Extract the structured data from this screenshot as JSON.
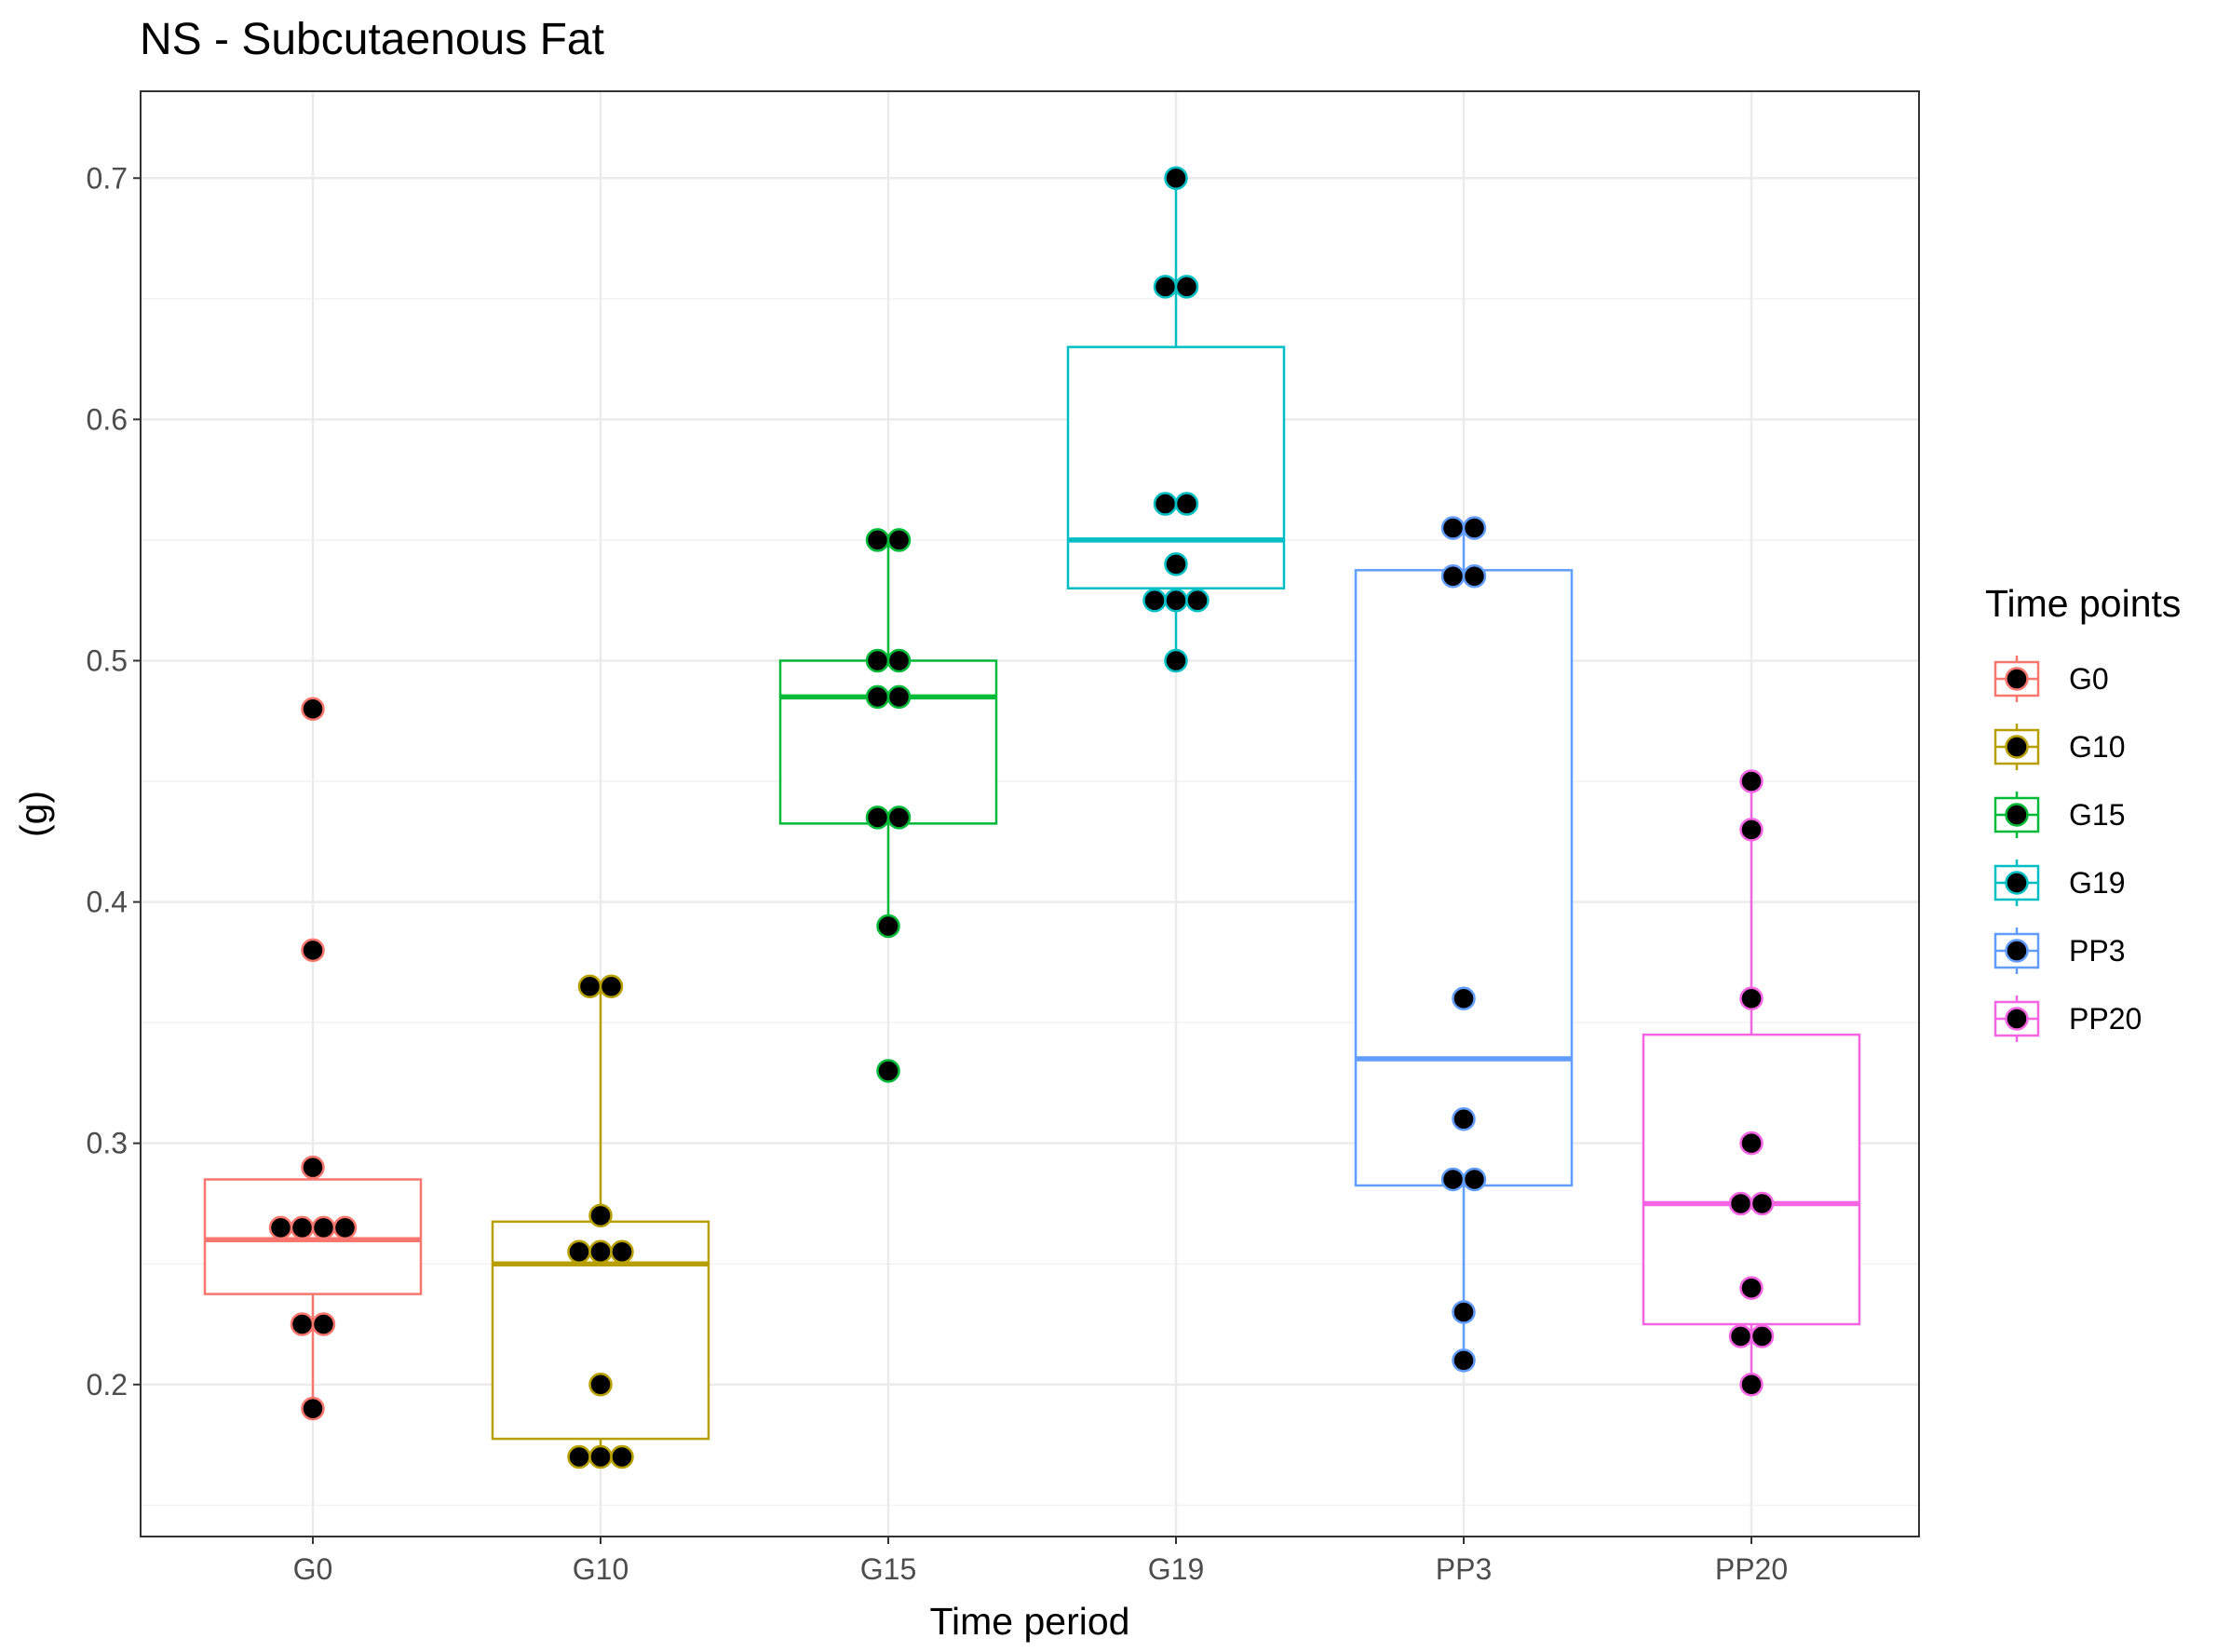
{
  "chart_data": {
    "type": "box",
    "title": "NS - Subcutaenous Fat",
    "xlabel": "Time period",
    "ylabel": "(g)",
    "ylim": [
      0.137,
      0.736
    ],
    "y_ticks": [
      0.2,
      0.3,
      0.4,
      0.5,
      0.6,
      0.7
    ],
    "y_tick_labels": [
      "0.2",
      "0.3",
      "0.4",
      "0.5",
      "0.6",
      "0.7"
    ],
    "categories": [
      "G0",
      "G10",
      "G15",
      "G19",
      "PP3",
      "PP20"
    ],
    "grid": true,
    "legend": {
      "title": "Time points",
      "position": "right"
    },
    "series": [
      {
        "name": "G0",
        "color": "#F8766D",
        "box": {
          "whisker_low": 0.19,
          "q1": 0.2375,
          "median": 0.26,
          "q3": 0.285,
          "whisker_high": 0.29
        },
        "points": [
          0.19,
          0.225,
          0.225,
          0.265,
          0.265,
          0.265,
          0.265,
          0.29,
          0.38,
          0.48
        ]
      },
      {
        "name": "G10",
        "color": "#B79F00",
        "box": {
          "whisker_low": 0.17,
          "q1": 0.1775,
          "median": 0.25,
          "q3": 0.2675,
          "whisker_high": 0.365
        },
        "points": [
          0.17,
          0.17,
          0.17,
          0.2,
          0.255,
          0.255,
          0.255,
          0.27,
          0.365,
          0.365
        ]
      },
      {
        "name": "G15",
        "color": "#00BA38",
        "box": {
          "whisker_low": 0.39,
          "q1": 0.4325,
          "median": 0.485,
          "q3": 0.5,
          "whisker_high": 0.55
        },
        "points": [
          0.33,
          0.39,
          0.435,
          0.435,
          0.485,
          0.485,
          0.5,
          0.5,
          0.55,
          0.55
        ]
      },
      {
        "name": "G19",
        "color": "#00BFC4",
        "box": {
          "whisker_low": 0.5,
          "q1": 0.53,
          "median": 0.55,
          "q3": 0.63,
          "whisker_high": 0.7
        },
        "points": [
          0.5,
          0.525,
          0.525,
          0.525,
          0.54,
          0.565,
          0.565,
          0.655,
          0.655,
          0.7
        ]
      },
      {
        "name": "PP3",
        "color": "#619CFF",
        "box": {
          "whisker_low": 0.21,
          "q1": 0.2825,
          "median": 0.335,
          "q3": 0.5375,
          "whisker_high": 0.555
        },
        "points": [
          0.21,
          0.23,
          0.285,
          0.285,
          0.31,
          0.36,
          0.535,
          0.535,
          0.555,
          0.555
        ]
      },
      {
        "name": "PP20",
        "color": "#F564E3",
        "box": {
          "whisker_low": 0.2,
          "q1": 0.225,
          "median": 0.275,
          "q3": 0.345,
          "whisker_high": 0.45
        },
        "points": [
          0.2,
          0.22,
          0.22,
          0.24,
          0.275,
          0.275,
          0.3,
          0.36,
          0.43,
          0.45
        ]
      }
    ]
  }
}
